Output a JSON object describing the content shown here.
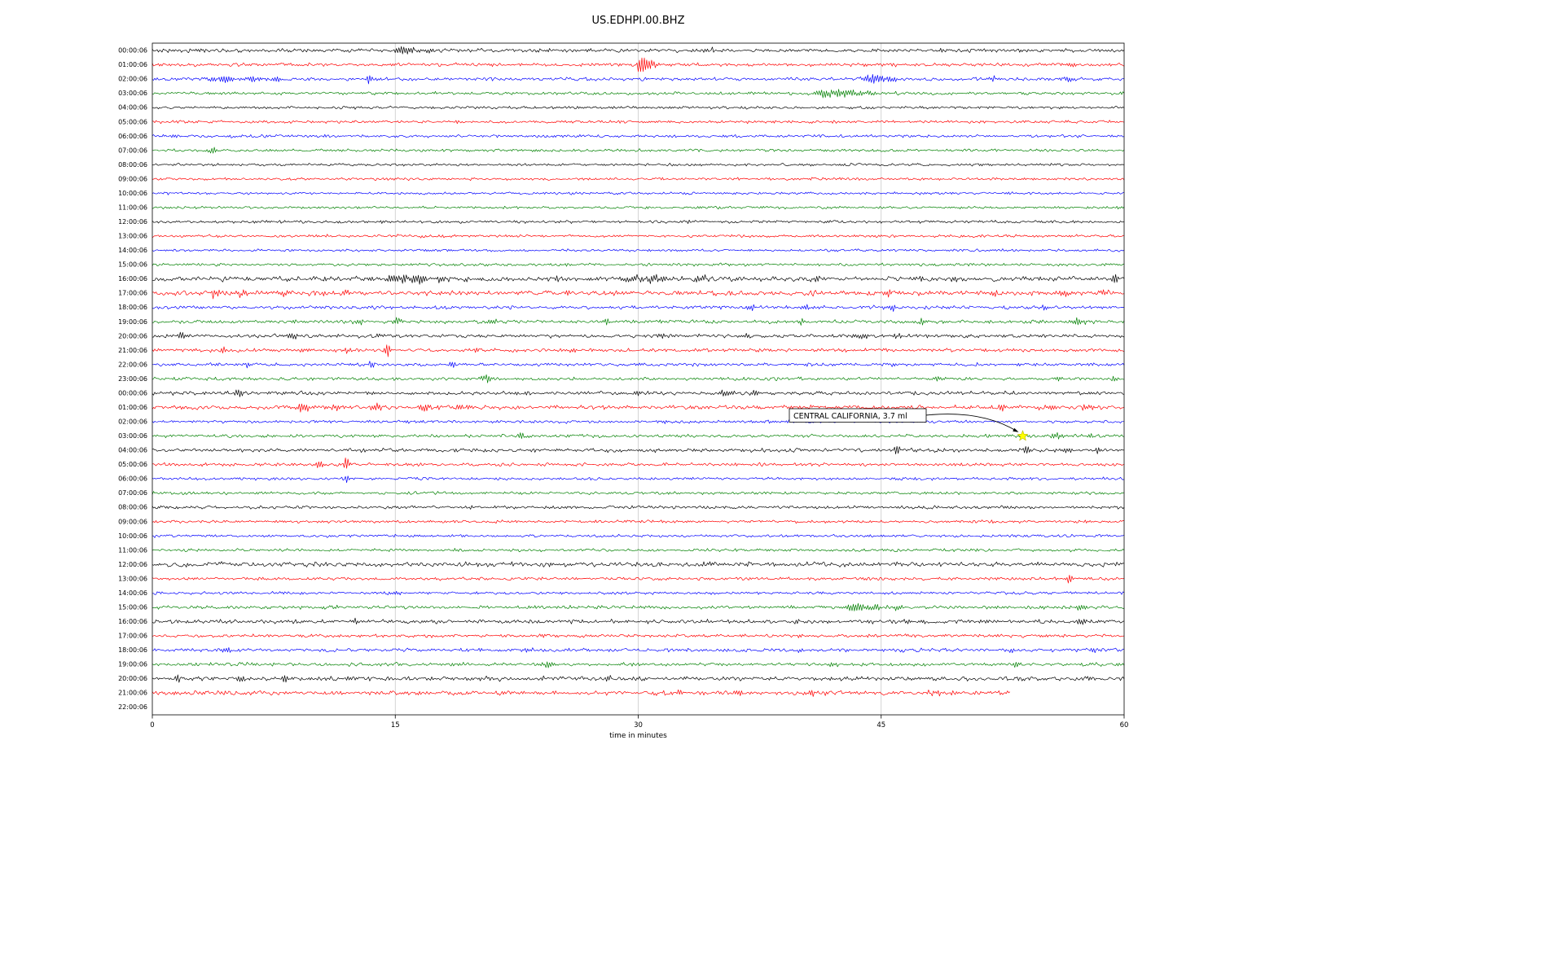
{
  "title": "US.EDHPI.00.BHZ",
  "chart_data": {
    "type": "line",
    "title": "US.EDHPI.00.BHZ",
    "xlabel": "time in minutes",
    "xlim": [
      0,
      60
    ],
    "x_ticks": [
      0,
      15,
      30,
      45,
      60
    ],
    "grid": true,
    "grid_color": "#c9c9c9",
    "trace_colors_cycle": [
      "black",
      "red",
      "blue",
      "green"
    ],
    "color_map": {
      "black": "#000000",
      "red": "#ff0000",
      "blue": "#0000ff",
      "green": "#008000"
    },
    "annotation": {
      "text": "CENTRAL CALIFORNIA, 3.7 ml",
      "region": "CENTRAL CALIFORNIA",
      "magnitude": "3.7 ml",
      "marker_row_index": 27,
      "marker_row_label": "03:00:06",
      "marker_minute": 53.7,
      "marker_color": "#ffff00"
    },
    "rows": [
      {
        "label": "00:00:06",
        "color": "black",
        "noise": 1.3,
        "events": [
          [
            15.7,
            2.8,
            0.5
          ],
          [
            17.0,
            2.0,
            0.3
          ],
          [
            34.5,
            2.2,
            0.12
          ]
        ]
      },
      {
        "label": "01:00:06",
        "color": "red",
        "noise": 1.2,
        "events": [
          [
            30.2,
            8.5,
            0.18
          ],
          [
            30.7,
            3.5,
            0.35
          ],
          [
            44.0,
            1.5,
            0.3
          ],
          [
            56.8,
            1.8,
            0.25
          ]
        ]
      },
      {
        "label": "02:00:06",
        "color": "blue",
        "noise": 1.2,
        "events": [
          [
            4.3,
            2.2,
            0.7
          ],
          [
            6.2,
            2.0,
            0.4
          ],
          [
            7.7,
            3.2,
            0.18
          ],
          [
            13.4,
            2.8,
            0.12
          ],
          [
            44.6,
            3.8,
            0.45
          ],
          [
            45.6,
            2.6,
            0.25
          ],
          [
            52.0,
            1.4,
            0.3
          ],
          [
            56.4,
            1.8,
            0.35
          ]
        ]
      },
      {
        "label": "03:00:06",
        "color": "green",
        "noise": 1.1,
        "events": [
          [
            41.7,
            3.3,
            0.7
          ],
          [
            43.2,
            2.6,
            0.5
          ],
          [
            44.3,
            1.8,
            0.3
          ]
        ]
      },
      {
        "label": "04:00:06",
        "color": "black",
        "noise": 1.0,
        "events": []
      },
      {
        "label": "05:00:06",
        "color": "red",
        "noise": 1.0,
        "events": []
      },
      {
        "label": "06:00:06",
        "color": "blue",
        "noise": 1.0,
        "events": [
          [
            1.2,
            1.4,
            0.3
          ]
        ]
      },
      {
        "label": "07:00:06",
        "color": "green",
        "noise": 1.0,
        "events": [
          [
            3.8,
            1.4,
            0.4
          ]
        ]
      },
      {
        "label": "08:00:06",
        "color": "black",
        "noise": 0.9,
        "events": []
      },
      {
        "label": "09:00:06",
        "color": "red",
        "noise": 0.9,
        "events": []
      },
      {
        "label": "10:00:06",
        "color": "blue",
        "noise": 0.9,
        "events": []
      },
      {
        "label": "11:00:06",
        "color": "green",
        "noise": 0.9,
        "events": []
      },
      {
        "label": "12:00:06",
        "color": "black",
        "noise": 1.0,
        "events": []
      },
      {
        "label": "13:00:06",
        "color": "red",
        "noise": 1.0,
        "events": []
      },
      {
        "label": "14:00:06",
        "color": "blue",
        "noise": 0.9,
        "events": []
      },
      {
        "label": "15:00:06",
        "color": "green",
        "noise": 1.0,
        "events": []
      },
      {
        "label": "16:00:06",
        "color": "black",
        "noise": 1.7,
        "events": [
          [
            15.1,
            3.2,
            0.6
          ],
          [
            16.4,
            2.8,
            0.4
          ],
          [
            18.0,
            2.0,
            0.3
          ],
          [
            25.0,
            1.8,
            0.25
          ],
          [
            29.6,
            2.4,
            0.35
          ],
          [
            31.0,
            2.8,
            0.5
          ],
          [
            33.8,
            2.6,
            0.35
          ],
          [
            41.0,
            1.8,
            0.3
          ],
          [
            49.6,
            2.8,
            0.12
          ],
          [
            54.0,
            1.8,
            0.2
          ],
          [
            59.4,
            2.8,
            0.15
          ]
        ]
      },
      {
        "label": "17:00:06",
        "color": "red",
        "noise": 1.7,
        "events": [
          [
            3.8,
            3.2,
            0.18
          ],
          [
            5.3,
            2.0,
            0.35
          ],
          [
            8.2,
            2.4,
            0.3
          ],
          [
            12.0,
            1.8,
            0.3
          ],
          [
            45.5,
            3.2,
            0.12
          ],
          [
            52.0,
            1.6,
            0.25
          ],
          [
            56.4,
            2.8,
            0.3
          ],
          [
            58.8,
            2.0,
            0.25
          ]
        ]
      },
      {
        "label": "18:00:06",
        "color": "blue",
        "noise": 1.2,
        "events": [
          [
            37.0,
            1.8,
            0.3
          ],
          [
            40.3,
            2.2,
            0.22
          ],
          [
            45.7,
            2.8,
            0.18
          ],
          [
            49.0,
            1.8,
            0.18
          ],
          [
            55.0,
            1.5,
            0.2
          ]
        ]
      },
      {
        "label": "19:00:06",
        "color": "green",
        "noise": 1.2,
        "events": [
          [
            12.9,
            2.8,
            0.12
          ],
          [
            15.1,
            3.2,
            0.18
          ],
          [
            21.0,
            1.8,
            0.2
          ],
          [
            28.0,
            2.2,
            0.18
          ],
          [
            40.0,
            2.2,
            0.18
          ],
          [
            47.6,
            2.6,
            0.18
          ],
          [
            57.2,
            3.6,
            0.28
          ]
        ]
      },
      {
        "label": "20:00:06",
        "color": "black",
        "noise": 1.3,
        "events": [
          [
            1.8,
            3.2,
            0.25
          ],
          [
            8.6,
            2.2,
            0.28
          ],
          [
            14.0,
            1.8,
            0.22
          ],
          [
            31.4,
            1.8,
            0.25
          ],
          [
            36.6,
            2.2,
            0.2
          ],
          [
            43.6,
            2.8,
            0.28
          ],
          [
            46.0,
            1.8,
            0.18
          ]
        ]
      },
      {
        "label": "21:00:06",
        "color": "red",
        "noise": 1.2,
        "events": [
          [
            4.4,
            3.8,
            0.12
          ],
          [
            9.4,
            2.2,
            0.18
          ],
          [
            12.1,
            2.2,
            0.18
          ],
          [
            14.5,
            4.5,
            0.18
          ],
          [
            20.0,
            1.8,
            0.18
          ],
          [
            26.0,
            1.6,
            0.25
          ]
        ]
      },
      {
        "label": "22:00:06",
        "color": "blue",
        "noise": 1.1,
        "events": [
          [
            5.9,
            2.8,
            0.12
          ],
          [
            13.5,
            3.2,
            0.18
          ],
          [
            18.5,
            2.2,
            0.18
          ],
          [
            30.0,
            1.4,
            0.25
          ]
        ]
      },
      {
        "label": "23:00:06",
        "color": "green",
        "noise": 1.1,
        "events": [
          [
            20.6,
            2.4,
            0.3
          ],
          [
            48.5,
            1.8,
            0.25
          ],
          [
            56.0,
            2.2,
            0.18
          ],
          [
            59.4,
            1.8,
            0.18
          ]
        ]
      },
      {
        "label": "00:00:06",
        "color": "black",
        "noise": 1.3,
        "events": [
          [
            5.3,
            2.8,
            0.22
          ],
          [
            30.0,
            1.5,
            0.2
          ],
          [
            35.4,
            2.4,
            0.25
          ],
          [
            37.2,
            2.8,
            0.18
          ]
        ]
      },
      {
        "label": "01:00:06",
        "color": "red",
        "noise": 1.5,
        "events": [
          [
            9.3,
            3.2,
            0.35
          ],
          [
            11.4,
            2.8,
            0.35
          ],
          [
            13.8,
            3.2,
            0.28
          ],
          [
            16.8,
            2.8,
            0.28
          ],
          [
            19.0,
            2.0,
            0.2
          ],
          [
            52.4,
            2.4,
            0.28
          ],
          [
            55.4,
            2.4,
            0.28
          ],
          [
            57.6,
            2.0,
            0.2
          ]
        ]
      },
      {
        "label": "02:00:06",
        "color": "blue",
        "noise": 1.0,
        "events": [
          [
            31.5,
            1.4,
            0.2
          ],
          [
            38.0,
            1.4,
            0.2
          ]
        ]
      },
      {
        "label": "03:00:06",
        "color": "green",
        "noise": 1.1,
        "events": [
          [
            22.8,
            2.8,
            0.12
          ],
          [
            55.8,
            2.4,
            0.35
          ],
          [
            58.0,
            1.8,
            0.2
          ]
        ]
      },
      {
        "label": "04:00:06",
        "color": "black",
        "noise": 1.3,
        "events": [
          [
            31.0,
            1.5,
            0.2
          ],
          [
            46.0,
            4.8,
            0.12
          ],
          [
            54.0,
            3.8,
            0.12
          ],
          [
            56.5,
            2.4,
            0.18
          ],
          [
            58.4,
            2.4,
            0.15
          ]
        ]
      },
      {
        "label": "05:00:06",
        "color": "red",
        "noise": 1.1,
        "events": [
          [
            10.3,
            2.2,
            0.18
          ],
          [
            12.0,
            6.5,
            0.1
          ]
        ]
      },
      {
        "label": "06:00:06",
        "color": "blue",
        "noise": 1.0,
        "events": [
          [
            12.0,
            2.6,
            0.09
          ]
        ]
      },
      {
        "label": "07:00:06",
        "color": "green",
        "noise": 1.0,
        "events": []
      },
      {
        "label": "08:00:06",
        "color": "black",
        "noise": 1.1,
        "events": []
      },
      {
        "label": "09:00:06",
        "color": "red",
        "noise": 1.0,
        "events": []
      },
      {
        "label": "10:00:06",
        "color": "blue",
        "noise": 1.0,
        "events": []
      },
      {
        "label": "11:00:06",
        "color": "green",
        "noise": 1.0,
        "events": []
      },
      {
        "label": "12:00:06",
        "color": "black",
        "noise": 1.6,
        "events": []
      },
      {
        "label": "13:00:06",
        "color": "red",
        "noise": 1.1,
        "events": [
          [
            56.6,
            3.2,
            0.18
          ]
        ]
      },
      {
        "label": "14:00:06",
        "color": "blue",
        "noise": 1.0,
        "events": [
          [
            15.0,
            1.2,
            0.3
          ]
        ]
      },
      {
        "label": "15:00:06",
        "color": "green",
        "noise": 1.2,
        "events": [
          [
            43.4,
            3.0,
            0.45
          ],
          [
            44.6,
            2.6,
            0.3
          ],
          [
            46.0,
            2.2,
            0.18
          ],
          [
            55.0,
            1.8,
            0.18
          ],
          [
            57.3,
            2.8,
            0.25
          ]
        ]
      },
      {
        "label": "16:00:06",
        "color": "black",
        "noise": 1.4,
        "events": [
          [
            12.6,
            2.4,
            0.12
          ],
          [
            46.6,
            2.2,
            0.18
          ],
          [
            47.6,
            2.4,
            0.12
          ],
          [
            57.5,
            1.8,
            0.25
          ]
        ]
      },
      {
        "label": "17:00:06",
        "color": "red",
        "noise": 1.1,
        "events": [
          [
            40.0,
            1.4,
            0.2
          ]
        ]
      },
      {
        "label": "18:00:06",
        "color": "blue",
        "noise": 1.2,
        "events": [
          [
            4.6,
            2.2,
            0.28
          ],
          [
            23.3,
            1.8,
            0.18
          ],
          [
            40.0,
            1.8,
            0.18
          ],
          [
            53.0,
            1.8,
            0.18
          ],
          [
            58.0,
            1.8,
            0.18
          ]
        ]
      },
      {
        "label": "19:00:06",
        "color": "green",
        "noise": 1.2,
        "events": [
          [
            24.5,
            2.4,
            0.28
          ],
          [
            42.0,
            1.8,
            0.25
          ],
          [
            44.0,
            1.5,
            0.2
          ],
          [
            53.4,
            2.4,
            0.18
          ]
        ]
      },
      {
        "label": "20:00:06",
        "color": "black",
        "noise": 1.5,
        "events": [
          [
            1.6,
            2.8,
            0.12
          ],
          [
            5.5,
            2.4,
            0.18
          ],
          [
            8.2,
            1.8,
            0.18
          ],
          [
            12.0,
            1.5,
            0.2
          ],
          [
            28.2,
            2.4,
            0.18
          ]
        ]
      },
      {
        "label": "21:00:06",
        "color": "red",
        "noise": 1.6,
        "end_minute": 53,
        "events": [
          [
            32.5,
            2.2,
            0.18
          ],
          [
            36.2,
            2.2,
            0.22
          ],
          [
            40.7,
            2.2,
            0.18
          ],
          [
            48.2,
            2.2,
            0.25
          ]
        ]
      },
      {
        "label": "22:00:06",
        "color": "blue",
        "noise": 1.0,
        "end_minute": 0,
        "events": []
      }
    ]
  }
}
